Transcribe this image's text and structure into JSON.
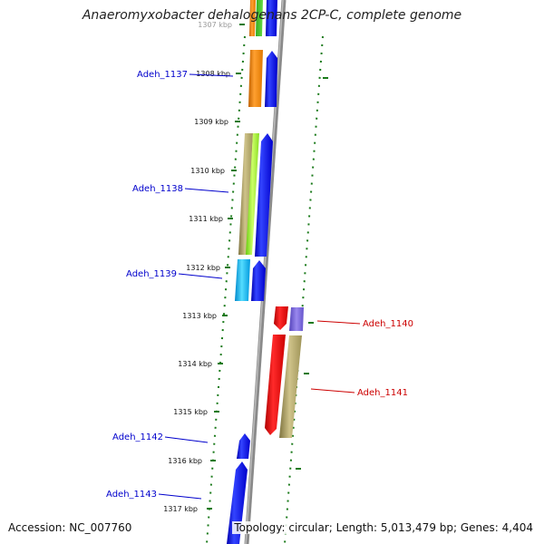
{
  "title": "Anaeromyxobacter dehalogenans 2CP-C, complete genome",
  "footer": {
    "accession": "Accession: NC_007760",
    "summary": "Topology: circular; Length: 5,013,479 bp; Genes: 4,404"
  },
  "ruler": {
    "ticks": [
      {
        "label": "1307 kbp",
        "faded": true
      },
      {
        "label": "1308 kbp"
      },
      {
        "label": "1309 kbp"
      },
      {
        "label": "1310 kbp"
      },
      {
        "label": "1311 kbp"
      },
      {
        "label": "1312 kbp"
      },
      {
        "label": "1313 kbp"
      },
      {
        "label": "1314 kbp"
      },
      {
        "label": "1315 kbp"
      },
      {
        "label": "1316 kbp"
      },
      {
        "label": "1317 kbp"
      }
    ]
  },
  "gene_labels": [
    {
      "name": "Adeh_1137",
      "side": "left",
      "color": "#0000cc"
    },
    {
      "name": "Adeh_1138",
      "side": "left",
      "color": "#0000cc"
    },
    {
      "name": "Adeh_1139",
      "side": "left",
      "color": "#0000cc"
    },
    {
      "name": "Adeh_1140",
      "side": "right",
      "color": "#cc0000"
    },
    {
      "name": "Adeh_1141",
      "side": "right",
      "color": "#cc0000"
    },
    {
      "name": "Adeh_1142",
      "side": "left",
      "color": "#0000cc"
    },
    {
      "name": "Adeh_1143",
      "side": "left",
      "color": "#0000cc"
    }
  ],
  "colors": {
    "forward_cds": "#0000ff",
    "reverse_cds": "#ff0000",
    "backbone": "#888888",
    "ticks": "#1a7a1a",
    "orange": "#ff8800",
    "olive": "#b5a86a",
    "lime": "#99ff33",
    "cyan": "#11bbff",
    "purple": "#7766dd",
    "khaki": "#c8bd78"
  }
}
